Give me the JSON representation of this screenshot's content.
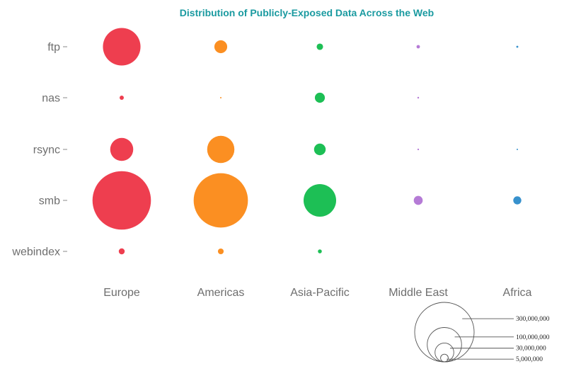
{
  "chart_data": {
    "type": "bubble",
    "title": "Distribution of Publicly-Exposed Data Across the Web",
    "xlabel": "",
    "ylabel": "",
    "categories": [
      "Europe",
      "Americas",
      "Asia-Pacific",
      "Middle East",
      "Africa"
    ],
    "rows": [
      "ftp",
      "nas",
      "rsync",
      "smb",
      "webindex"
    ],
    "colors": {
      "Europe": "#ee3e4f",
      "Americas": "#fb8f22",
      "Asia-Pacific": "#1dbf55",
      "Middle East": "#b57bd6",
      "Africa": "#3791cd"
    },
    "size_scale_reference": {
      "value": 300000000
    },
    "series": [
      {
        "name": "Europe",
        "values": [
          120000000,
          1500000,
          45000000,
          290000000,
          3000000
        ]
      },
      {
        "name": "Americas",
        "values": [
          14000000,
          160000,
          63000000,
          250000000,
          2800000
        ]
      },
      {
        "name": "Asia-Pacific",
        "values": [
          3500000,
          8500000,
          11500000,
          90000000,
          1300000
        ]
      },
      {
        "name": "Middle East",
        "values": [
          1000000,
          250000,
          230000,
          6800000,
          null
        ]
      },
      {
        "name": "Africa",
        "values": [
          350000,
          null,
          80000,
          5500000,
          null
        ]
      }
    ],
    "legend": {
      "placement": "bottom-right",
      "entries": [
        {
          "value": 300000000,
          "label": "300,000,000"
        },
        {
          "value": 100000000,
          "label": "100,000,000"
        },
        {
          "value": 30000000,
          "label": "30,000,000"
        },
        {
          "value": 5000000,
          "label": "5,000,000"
        }
      ]
    },
    "grid": false
  }
}
